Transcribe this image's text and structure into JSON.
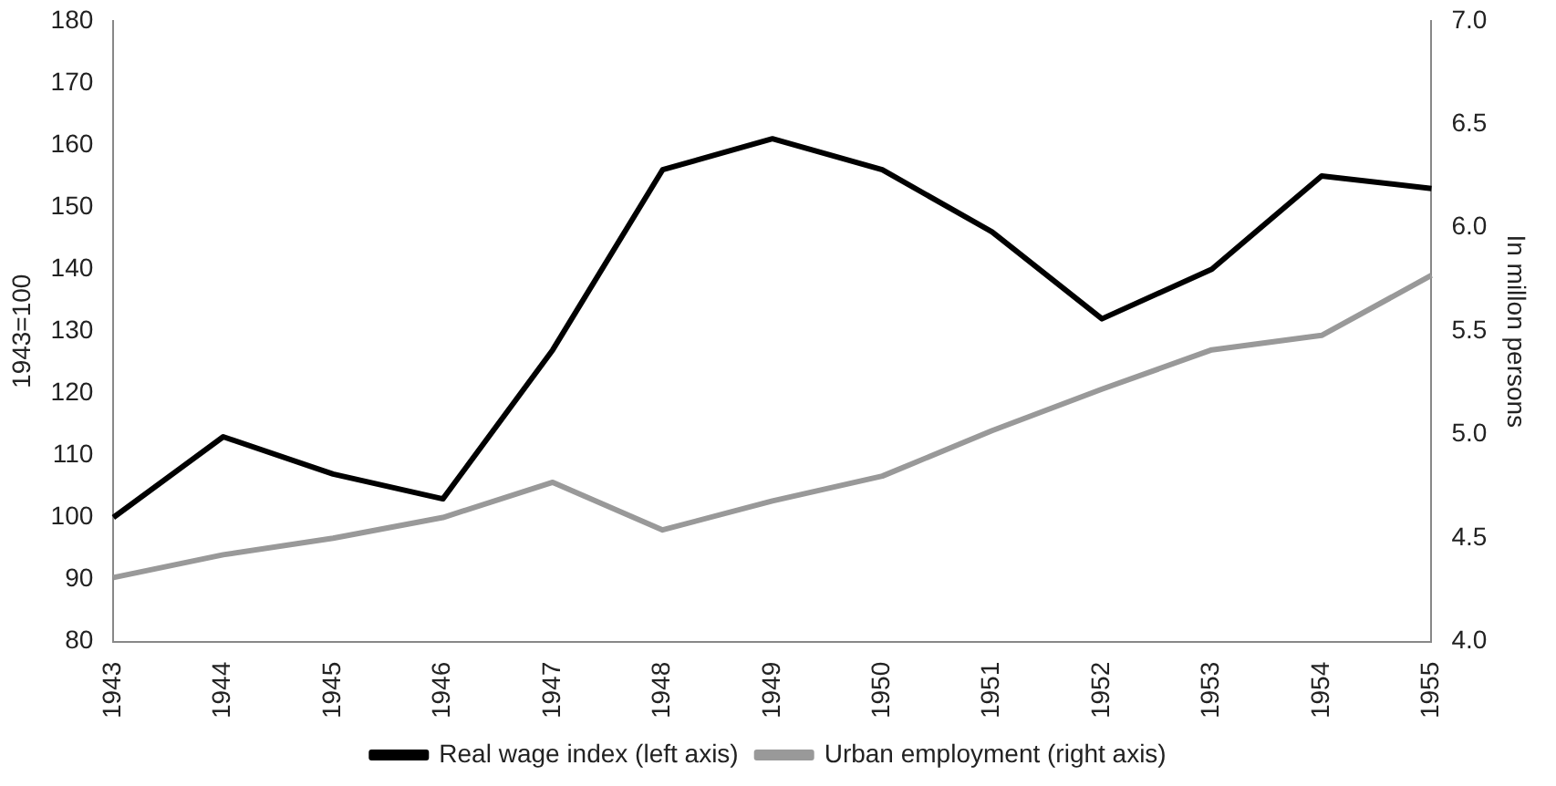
{
  "chart_data": {
    "type": "line",
    "ylabel": "1943=100",
    "y2label": "In millon persons",
    "categories": [
      "1943",
      "1944",
      "1945",
      "1946",
      "1947",
      "1948",
      "1949",
      "1950",
      "1951",
      "1952",
      "1953",
      "1954",
      "1955"
    ],
    "series": [
      {
        "name": "Real wage index (left axis)",
        "color": "#000000",
        "values": [
          100,
          113,
          107,
          103,
          127,
          156,
          161,
          156,
          146,
          132,
          140,
          155,
          153
        ]
      },
      {
        "name": "Urban employment (right axis)",
        "color": "#999999",
        "axis": "y2",
        "values": [
          4.31,
          4.42,
          4.5,
          4.6,
          4.77,
          4.54,
          4.68,
          4.8,
          5.02,
          5.22,
          5.41,
          5.48,
          5.77
        ]
      }
    ],
    "ylim": [
      80,
      180
    ],
    "yticks": [
      80,
      90,
      100,
      110,
      120,
      130,
      140,
      150,
      160,
      170,
      180
    ],
    "y2lim": [
      4.0,
      7.0
    ],
    "y2ticks": [
      {
        "value": 4,
        "label": "4.0"
      },
      {
        "value": 4.5,
        "label": "4.5"
      },
      {
        "value": 5,
        "label": "5.0"
      },
      {
        "value": 5.5,
        "label": "5.5"
      },
      {
        "value": 6,
        "label": "6.0"
      },
      {
        "value": 6.5,
        "label": "6.5"
      },
      {
        "value": 7,
        "label": "7.0"
      }
    ],
    "grid": false,
    "legend": "bottom",
    "marker": "none",
    "line_style": "solid"
  }
}
